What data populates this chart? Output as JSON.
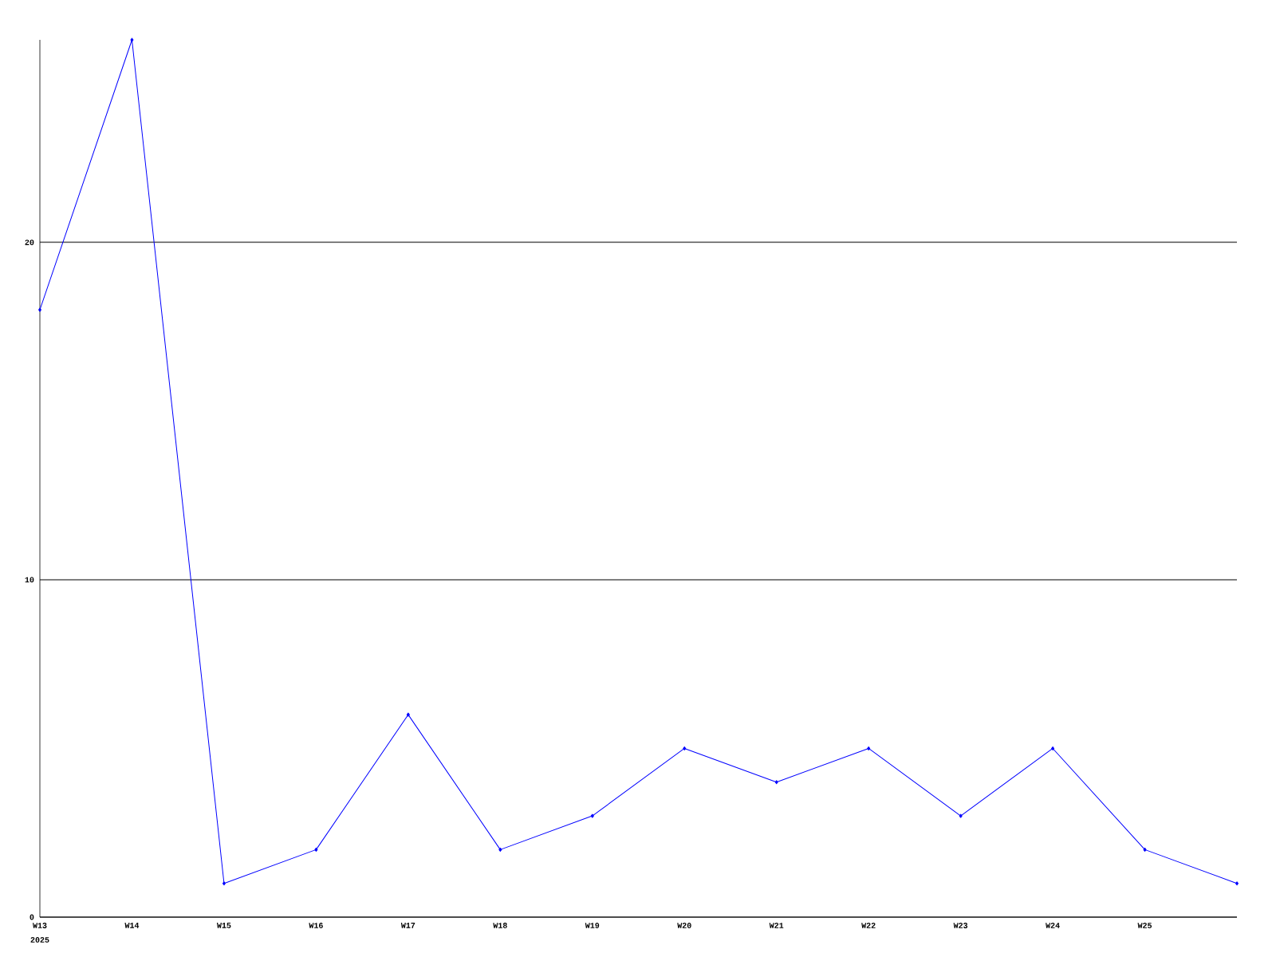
{
  "chart_data": {
    "type": "line",
    "categories": [
      "W13",
      "W14",
      "W15",
      "W16",
      "W17",
      "W18",
      "W19",
      "W20",
      "W21",
      "W22",
      "W23",
      "W24",
      "W25",
      null
    ],
    "values": [
      18,
      26,
      1,
      2,
      6,
      2,
      3,
      5,
      4,
      5,
      3,
      5,
      2,
      1
    ],
    "color": "#0000ff",
    "marker": "diamond",
    "line_style": "solid",
    "ylim": [
      0,
      26
    ],
    "yticks": [
      0,
      10,
      20
    ],
    "grid": "y",
    "annotations": [
      "2025"
    ]
  }
}
